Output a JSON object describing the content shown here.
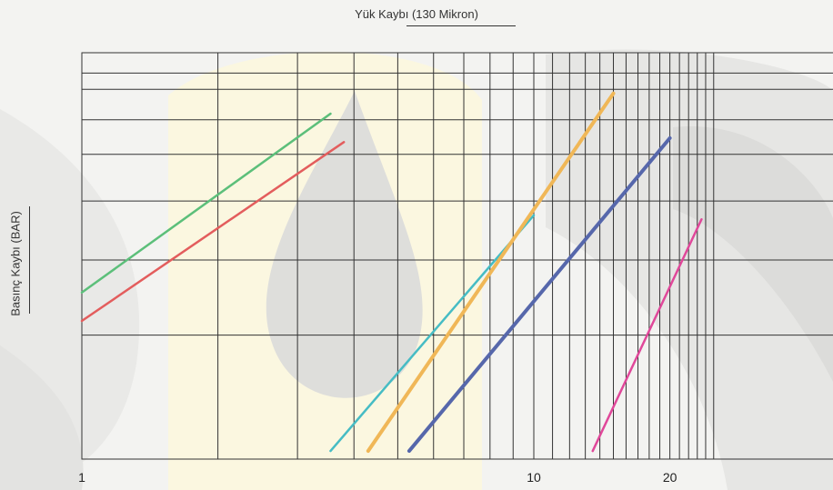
{
  "chart_data": {
    "type": "line",
    "title": "Yük Kaybı (130 Mikron)",
    "xlabel": "",
    "ylabel": "Basınç Kaybı (BAR)",
    "x_scale": "log",
    "xlim": [
      1,
      25
    ],
    "xticks": [
      {
        "value": 1,
        "label": "1"
      },
      {
        "value": 10,
        "label": "10"
      },
      {
        "value": 20,
        "label": "20"
      }
    ],
    "ylim": [
      0,
      1
    ],
    "y_scale": "log",
    "grid": true,
    "series": [
      {
        "color": "#5cbf7a",
        "x": [
          1,
          3.55
        ],
        "y": [
          0.41,
          0.85
        ]
      },
      {
        "color": "#e35d5d",
        "x": [
          1,
          3.8
        ],
        "y": [
          0.34,
          0.78
        ]
      },
      {
        "color": "#46bcc4",
        "x": [
          3.55,
          10
        ],
        "y": [
          0.02,
          0.6
        ]
      },
      {
        "color": "#f0b757",
        "x": [
          4.3,
          15
        ],
        "y": [
          0.02,
          0.9
        ]
      },
      {
        "color": "#5667ab",
        "x": [
          5.3,
          20
        ],
        "y": [
          0.02,
          0.79
        ]
      },
      {
        "color": "#e0489a",
        "x": [
          13.5,
          23.5
        ],
        "y": [
          0.02,
          0.59
        ]
      }
    ]
  },
  "background": {
    "page": "#f3f3f1",
    "band": "#fbf7e0",
    "shape_dark": "#d8d8d6",
    "shape_light": "#e9e9e7"
  }
}
